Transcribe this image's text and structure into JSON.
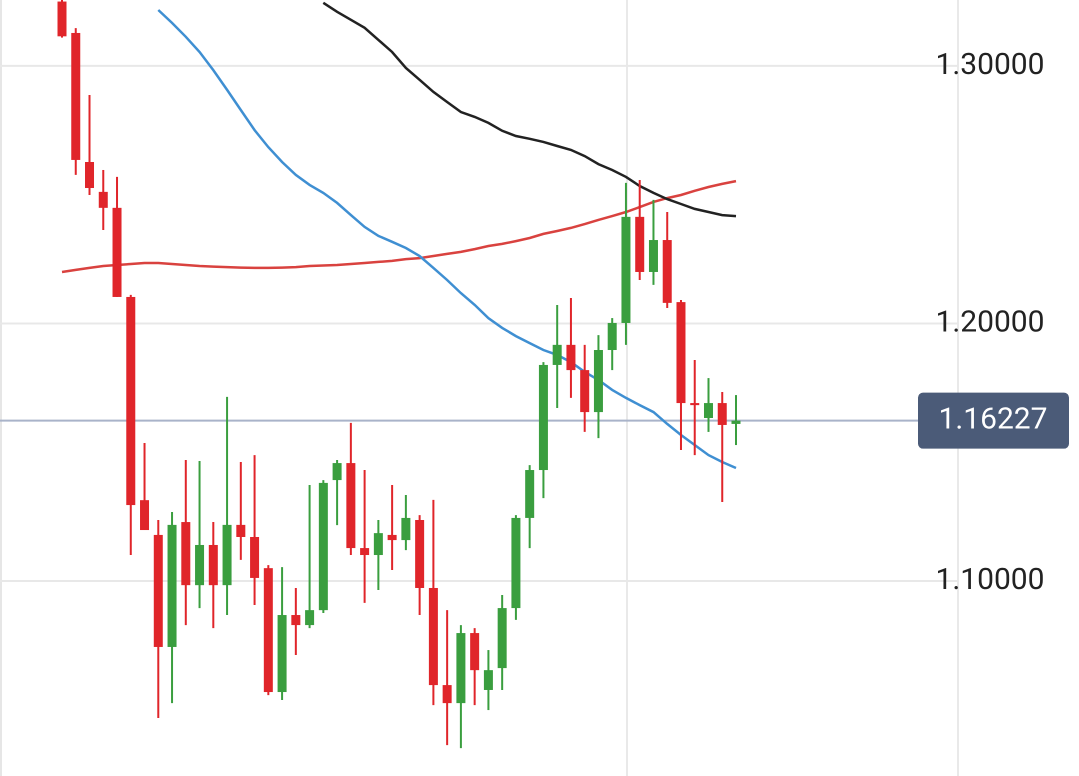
{
  "chart_data": {
    "type": "candlestick",
    "open": [
      1.325,
      1.3128,
      1.2627,
      1.2511,
      1.2449,
      1.2103,
      1.1314,
      1.1179,
      1.0744,
      1.1229,
      1.0984,
      1.114,
      1.0984,
      1.1218,
      1.1171,
      1.105,
      1.0569,
      1.0868,
      1.0829,
      1.0887,
      1.1392,
      1.1458,
      1.1128,
      1.1101,
      1.1179,
      1.1159,
      1.1237,
      1.0973,
      1.0596,
      1.0526,
      1.0798,
      1.0577,
      1.0662,
      1.0895,
      1.1245,
      1.1431,
      1.1839,
      1.1917,
      1.1819,
      1.1656,
      1.1897,
      1.2002,
      1.2414,
      1.22,
      1.2324,
      1.2083,
      1.1691,
      1.1633,
      1.1691,
      1.161
    ],
    "high": [
      1.326,
      1.3147,
      1.2887,
      1.2596,
      1.2569,
      1.2111,
      1.1536,
      1.1237,
      1.1268,
      1.147,
      1.1466,
      1.1229,
      1.1715,
      1.1462,
      1.1489,
      1.1062,
      1.1054,
      1.0973,
      1.1373,
      1.1392,
      1.147,
      1.1614,
      1.1431,
      1.1237,
      1.1373,
      1.1334,
      1.1256,
      1.1315,
      1.0887,
      1.0829,
      1.0817,
      1.0732,
      1.0946,
      1.1256,
      1.145,
      1.185,
      1.2072,
      1.2099,
      1.1917,
      1.1955,
      1.2021,
      1.2546,
      1.2557,
      1.248,
      1.2433,
      1.2091,
      1.1858,
      1.1788,
      1.1734,
      1.1722
    ],
    "low": [
      1.311,
      1.2577,
      1.2499,
      1.2363,
      1.2103,
      1.1101,
      1.1198,
      1.0468,
      1.0526,
      1.0829,
      1.0895,
      1.0817,
      1.0868,
      1.1082,
      1.0907,
      1.0557,
      1.0538,
      1.0713,
      1.0817,
      1.0876,
      1.1217,
      1.1101,
      1.0915,
      1.0965,
      1.1043,
      1.112,
      1.0868,
      1.0518,
      1.0363,
      1.0351,
      1.0518,
      1.0499,
      1.0577,
      1.0849,
      1.1128,
      1.1322,
      1.1672,
      1.1711,
      1.1579,
      1.1555,
      1.1819,
      1.1917,
      1.2169,
      1.215,
      1.206,
      1.1509,
      1.1489,
      1.1579,
      1.1307,
      1.1528
    ],
    "close": [
      1.3115,
      1.2635,
      1.2526,
      1.2449,
      1.2103,
      1.1295,
      1.1198,
      1.0744,
      1.1218,
      1.0984,
      1.114,
      1.0984,
      1.1218,
      1.1171,
      1.1012,
      1.0569,
      1.0868,
      1.0829,
      1.0887,
      1.1381,
      1.1458,
      1.1128,
      1.1101,
      1.1186,
      1.1159,
      1.1245,
      1.0973,
      1.0596,
      1.0526,
      1.0798,
      1.0654,
      1.0654,
      1.0895,
      1.1245,
      1.1431,
      1.1839,
      1.1917,
      1.1819,
      1.1656,
      1.1897,
      1.2002,
      1.2414,
      1.22,
      1.2324,
      1.208,
      1.1691,
      1.1683,
      1.1691,
      1.1606,
      1.16227
    ],
    "up_color": "#3a9e3f",
    "down_color": "#e0252a",
    "moving_averages": [
      {
        "color": "#d9423f",
        "values": [
          1.22,
          1.2208,
          1.2216,
          1.2223,
          1.2227,
          1.2231,
          1.2235,
          1.2235,
          1.2231,
          1.2227,
          1.2223,
          1.2221,
          1.2219,
          1.2217,
          1.2216,
          1.2216,
          1.2217,
          1.2219,
          1.2223,
          1.2225,
          1.2227,
          1.2231,
          1.2235,
          1.2239,
          1.2243,
          1.225,
          1.2254,
          1.2262,
          1.227,
          1.2278,
          1.2289,
          1.2301,
          1.2309,
          1.232,
          1.2332,
          1.2348,
          1.2359,
          1.2371,
          1.2386,
          1.2402,
          1.2417,
          1.2433,
          1.2452,
          1.2472,
          1.2487,
          1.2499,
          1.2515,
          1.253,
          1.2542,
          1.2553
        ]
      },
      {
        "color": "#3f8fd2",
        "values": [
          null,
          null,
          null,
          null,
          null,
          null,
          null,
          1.3217,
          1.3167,
          1.3113,
          1.3054,
          1.2984,
          1.2907,
          1.2829,
          1.2751,
          1.2685,
          1.2627,
          1.2577,
          1.2538,
          1.2507,
          1.2468,
          1.2421,
          1.2375,
          1.234,
          1.2317,
          1.2293,
          1.2262,
          1.2216,
          1.2169,
          1.2118,
          1.2072,
          1.2021,
          1.1983,
          1.1951,
          1.1924,
          1.1897,
          1.1878,
          1.185,
          1.1812,
          1.1781,
          1.1742,
          1.1711,
          1.1683,
          1.1656,
          1.161,
          1.1567,
          1.1528,
          1.1489,
          1.1462,
          1.1439
        ]
      },
      {
        "color": "#222222",
        "values": [
          null,
          null,
          null,
          null,
          null,
          null,
          null,
          null,
          null,
          null,
          null,
          null,
          null,
          null,
          null,
          null,
          null,
          null,
          null,
          1.3245,
          1.321,
          1.3179,
          1.3148,
          1.3101,
          1.3054,
          1.2992,
          1.2946,
          1.2899,
          1.286,
          1.2821,
          1.2802,
          1.2779,
          1.2748,
          1.2728,
          1.2717,
          1.2705,
          1.2689,
          1.2674,
          1.265,
          1.2619,
          1.2596,
          1.2569,
          1.2534,
          1.2507,
          1.2483,
          1.2464,
          1.2445,
          1.2433,
          1.2421,
          1.2417
        ]
      }
    ],
    "current_price": 1.16227,
    "price_line_color": "#a9b3c9",
    "price_box_color": "#4b5b78",
    "ylim": [
      1.0243,
      1.3256
    ],
    "yticks": [
      {
        "value": 1.1,
        "label": "1.10000"
      },
      {
        "value": 1.2,
        "label": "1.20000"
      },
      {
        "value": 1.3,
        "label": "1.30000"
      }
    ],
    "grid": true
  }
}
